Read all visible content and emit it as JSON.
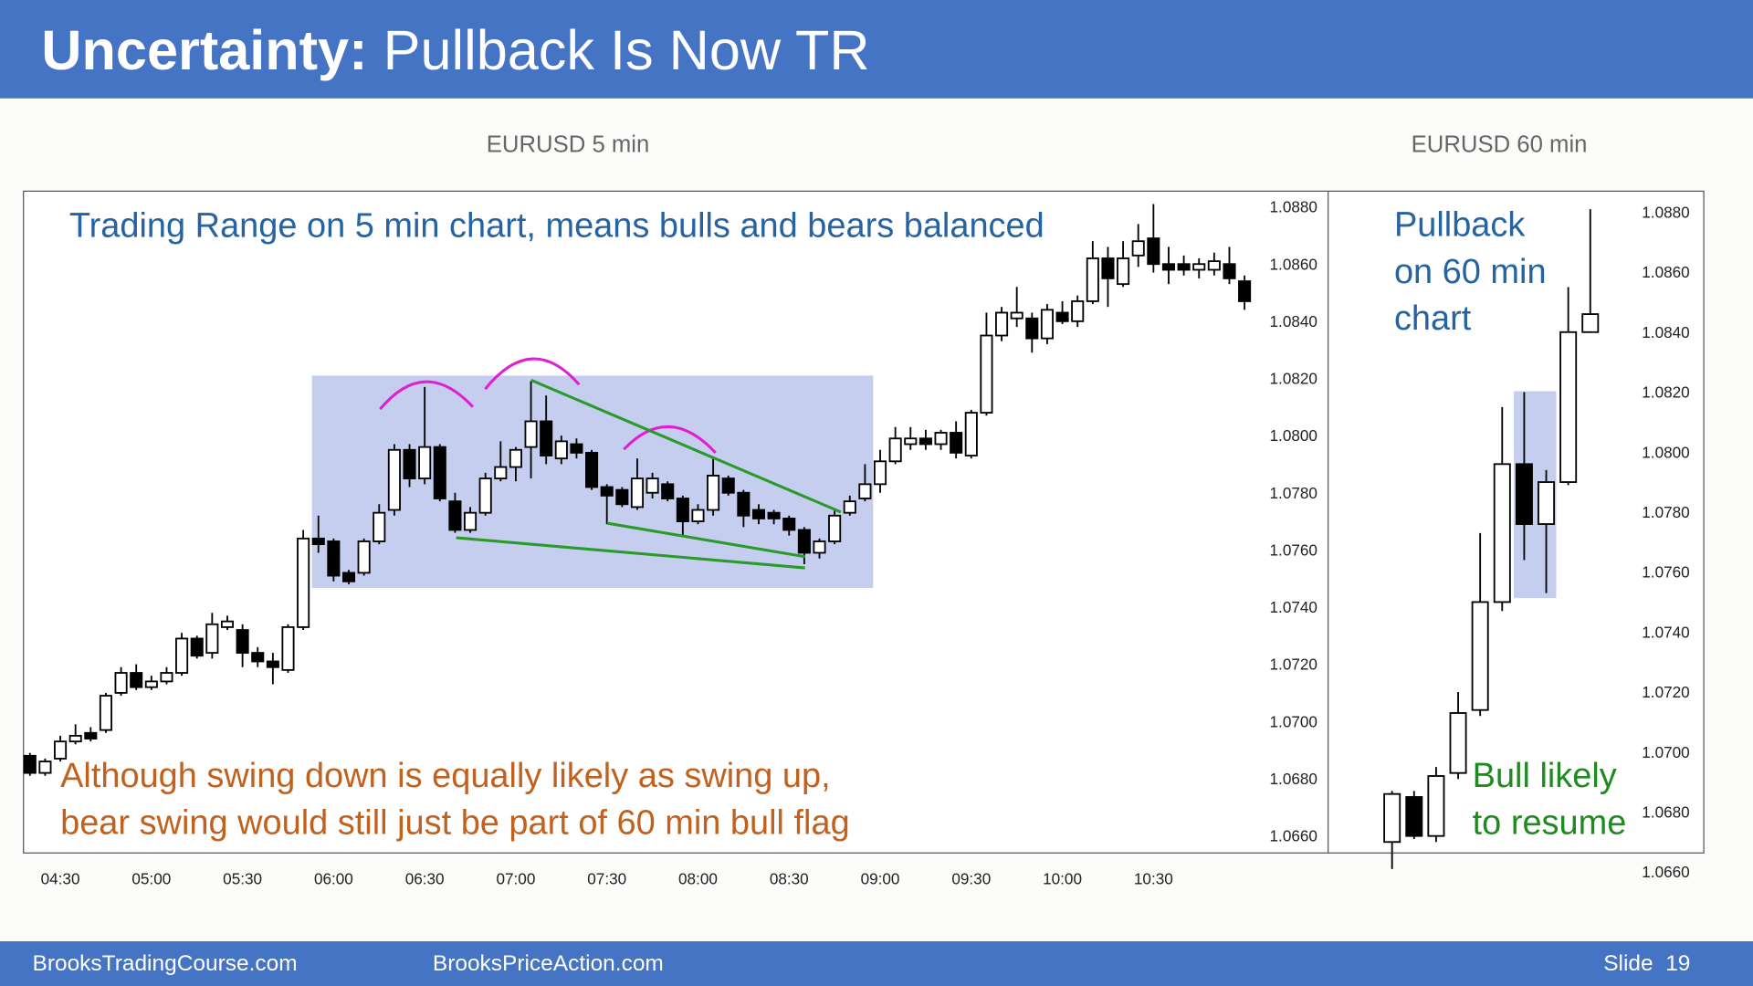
{
  "slide": {
    "title_bold": "Uncertainty:",
    "title": "Pullback Is Now TR",
    "footer": [
      "BrooksTradingCourse.com",
      "BrooksPriceAction.com"
    ],
    "slide_number": "Slide  19"
  },
  "chart_data": [
    {
      "type": "candlestick",
      "title": "EURUSD 5 min",
      "annotations": [
        {
          "lines": [
            "Trading Range on 5 min chart, means bulls and bears balanced"
          ],
          "color": "#2563a3"
        },
        {
          "lines": [
            "Although swing down is equally likely as swing up,",
            "bear swing would still just be part of 60 min bull flag"
          ],
          "color": "#c2611d"
        }
      ],
      "categories": [
        null,
        null,
        "04:30",
        null,
        null,
        null,
        null,
        null,
        "05:00",
        null,
        null,
        null,
        null,
        null,
        "05:30",
        null,
        null,
        null,
        null,
        null,
        "06:00",
        null,
        null,
        null,
        null,
        null,
        "06:30",
        null,
        null,
        null,
        null,
        null,
        "07:00",
        null,
        null,
        null,
        null,
        null,
        "07:30",
        null,
        null,
        null,
        null,
        null,
        "08:00",
        null,
        null,
        null,
        null,
        null,
        "08:30",
        null,
        null,
        null,
        null,
        null,
        "09:00",
        null,
        null,
        null,
        null,
        null,
        "09:30",
        null,
        null,
        null,
        null,
        null,
        "10:00",
        null,
        null,
        null,
        null,
        null,
        "10:30",
        null,
        null,
        null,
        null,
        null,
        null
      ],
      "open": [
        1.0688,
        1.0682,
        1.0687,
        1.0693,
        1.0696,
        1.0697,
        1.071,
        1.0717,
        1.0712,
        1.0714,
        1.0717,
        1.0729,
        1.0724,
        1.0733,
        1.0732,
        1.0724,
        1.0721,
        1.0718,
        1.0733,
        1.0764,
        1.0763,
        1.0752,
        1.0752,
        1.0763,
        1.0774,
        1.0795,
        1.0785,
        1.0796,
        1.0777,
        1.0767,
        1.0773,
        1.0785,
        1.0789,
        1.0796,
        1.0805,
        1.0792,
        1.0797,
        1.0794,
        1.0782,
        1.0781,
        1.0775,
        1.078,
        1.0783,
        1.0778,
        1.077,
        1.0774,
        1.0785,
        1.078,
        1.0774,
        1.0773,
        1.0771,
        1.0767,
        1.0759,
        1.0763,
        1.0773,
        1.0778,
        1.0783,
        1.0791,
        1.0797,
        1.0799,
        1.0797,
        1.0801,
        1.0793,
        1.0808,
        1.0835,
        1.0841,
        1.0841,
        1.0834,
        1.0843,
        1.084,
        1.0847,
        1.0862,
        1.0853,
        1.0863,
        1.0869,
        1.086,
        1.086,
        1.0858,
        1.0858,
        1.086,
        1.0854
      ],
      "high": [
        1.0689,
        1.0687,
        1.0695,
        1.0699,
        1.0698,
        1.071,
        1.0719,
        1.072,
        1.0716,
        1.0719,
        1.0731,
        1.073,
        1.0738,
        1.0737,
        1.0734,
        1.0726,
        1.0724,
        1.0734,
        1.0767,
        1.0772,
        1.0764,
        1.0753,
        1.0764,
        1.0776,
        1.0797,
        1.0797,
        1.0817,
        1.0797,
        1.078,
        1.0775,
        1.0787,
        1.0798,
        1.0796,
        1.0819,
        1.0814,
        1.08,
        1.0799,
        1.0795,
        1.0783,
        1.0782,
        1.0792,
        1.0787,
        1.0784,
        1.0779,
        1.0776,
        1.0792,
        1.0786,
        1.0781,
        1.0776,
        1.0774,
        1.0772,
        1.0768,
        1.0764,
        1.0774,
        1.0779,
        1.079,
        1.0795,
        1.0803,
        1.0803,
        1.0802,
        1.0802,
        1.0805,
        1.0809,
        1.0843,
        1.0845,
        1.0852,
        1.0843,
        1.0846,
        1.0847,
        1.0849,
        1.0868,
        1.0866,
        1.0868,
        1.0874,
        1.0881,
        1.0866,
        1.0863,
        1.0862,
        1.0864,
        1.0866,
        1.0856
      ],
      "low": [
        1.0681,
        1.0681,
        1.0686,
        1.0692,
        1.0693,
        1.0696,
        1.0709,
        1.0711,
        1.0711,
        1.0713,
        1.0716,
        1.0722,
        1.0722,
        1.0732,
        1.0719,
        1.0719,
        1.0713,
        1.0717,
        1.0732,
        1.0759,
        1.0749,
        1.0748,
        1.0751,
        1.0762,
        1.0772,
        1.0782,
        1.0783,
        1.0777,
        1.0766,
        1.0766,
        1.0772,
        1.0784,
        1.0784,
        1.0785,
        1.079,
        1.079,
        1.0792,
        1.0781,
        1.0769,
        1.0775,
        1.0774,
        1.0778,
        1.0777,
        1.0765,
        1.0769,
        1.0772,
        1.0779,
        1.0768,
        1.0769,
        1.0769,
        1.0765,
        1.0755,
        1.0757,
        1.0762,
        1.0772,
        1.0777,
        1.078,
        1.079,
        1.0795,
        1.0795,
        1.0795,
        1.0792,
        1.0792,
        1.0807,
        1.0833,
        1.0838,
        1.0829,
        1.0832,
        1.0839,
        1.0838,
        1.0846,
        1.0845,
        1.0852,
        1.0859,
        1.0857,
        1.0853,
        1.0856,
        1.0855,
        1.0856,
        1.0853,
        1.0844
      ],
      "close": [
        1.0682,
        1.0686,
        1.0693,
        1.0695,
        1.0694,
        1.0709,
        1.0717,
        1.0712,
        1.0714,
        1.0717,
        1.0729,
        1.0723,
        1.0734,
        1.0735,
        1.0724,
        1.0721,
        1.0719,
        1.0733,
        1.0764,
        1.0762,
        1.0751,
        1.0749,
        1.0763,
        1.0773,
        1.0795,
        1.0785,
        1.0796,
        1.0778,
        1.0767,
        1.0773,
        1.0785,
        1.0789,
        1.0795,
        1.0805,
        1.0793,
        1.0798,
        1.0794,
        1.0782,
        1.0779,
        1.0776,
        1.0785,
        1.0785,
        1.0778,
        1.077,
        1.0774,
        1.0786,
        1.078,
        1.0772,
        1.0771,
        1.0771,
        1.0767,
        1.0759,
        1.0763,
        1.0772,
        1.0777,
        1.0783,
        1.0791,
        1.0799,
        1.0799,
        1.0797,
        1.0801,
        1.0794,
        1.0808,
        1.0835,
        1.0843,
        1.0843,
        1.0834,
        1.0844,
        1.084,
        1.0847,
        1.0862,
        1.0855,
        1.0862,
        1.0868,
        1.086,
        1.0858,
        1.0858,
        1.086,
        1.0861,
        1.0855,
        1.0847
      ],
      "up_color": "#ffffff",
      "down_color": "#000000",
      "ylim": [
        1.0654,
        1.08855
      ],
      "yticks": [
        {
          "value": 1.066,
          "label": "1.0660"
        },
        {
          "value": 1.068,
          "label": "1.0680"
        },
        {
          "value": 1.07,
          "label": "1.0700"
        },
        {
          "value": 1.072,
          "label": "1.0720"
        },
        {
          "value": 1.074,
          "label": "1.0740"
        },
        {
          "value": 1.076,
          "label": "1.0760"
        },
        {
          "value": 1.078,
          "label": "1.0780"
        },
        {
          "value": 1.08,
          "label": "1.0800"
        },
        {
          "value": 1.082,
          "label": "1.0820"
        },
        {
          "value": 1.084,
          "label": "1.0840"
        },
        {
          "value": 1.086,
          "label": "1.0860"
        },
        {
          "value": 1.088,
          "label": "1.0880"
        }
      ],
      "grid": false
    },
    {
      "type": "candlestick",
      "title": "EURUSD 60 min",
      "annotations": [
        {
          "lines": [
            "Pullback",
            "on 60 min",
            "chart"
          ],
          "color": "#2563a3"
        },
        {
          "lines": [
            "Bull likely",
            "to resume"
          ],
          "color": "#1f8a1f"
        }
      ],
      "categories": [
        null,
        null,
        null,
        null,
        null,
        null,
        null,
        null,
        null,
        null
      ],
      "open": [
        1.067,
        1.0685,
        1.0672,
        1.0693,
        1.0714,
        1.075,
        1.0796,
        1.0776,
        1.079,
        1.084
      ],
      "high": [
        1.0687,
        1.0687,
        1.0695,
        1.072,
        1.0773,
        1.0815,
        1.082,
        1.0794,
        1.0855,
        1.0881
      ],
      "low": [
        1.0661,
        1.0671,
        1.067,
        1.0691,
        1.0712,
        1.0747,
        1.0764,
        1.0753,
        1.0789,
        1.084
      ],
      "close": [
        1.0686,
        1.0672,
        1.0692,
        1.0713,
        1.075,
        1.0796,
        1.0776,
        1.079,
        1.084,
        1.0846
      ],
      "up_color": "#ffffff",
      "down_color": "#000000",
      "ylim": [
        1.066,
        1.0887
      ],
      "yticks": [
        {
          "value": 1.066,
          "label": "1.0660"
        },
        {
          "value": 1.068,
          "label": "1.0680"
        },
        {
          "value": 1.07,
          "label": "1.0700"
        },
        {
          "value": 1.072,
          "label": "1.0720"
        },
        {
          "value": 1.074,
          "label": "1.0740"
        },
        {
          "value": 1.076,
          "label": "1.0760"
        },
        {
          "value": 1.078,
          "label": "1.0780"
        },
        {
          "value": 1.08,
          "label": "1.0800"
        },
        {
          "value": 1.082,
          "label": "1.0820"
        },
        {
          "value": 1.084,
          "label": "1.0840"
        },
        {
          "value": 1.086,
          "label": "1.0860"
        },
        {
          "value": 1.088,
          "label": "1.0880"
        }
      ],
      "grid": false
    }
  ]
}
